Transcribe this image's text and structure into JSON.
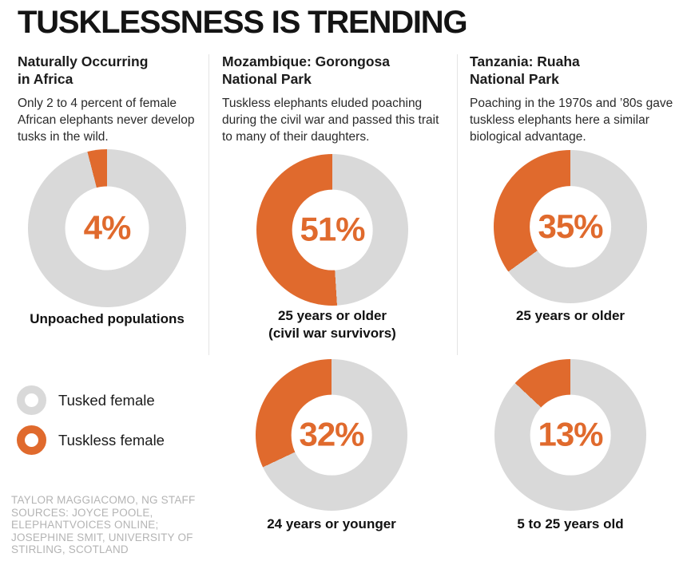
{
  "title": "TUSKLESSNESS IS TRENDING",
  "colors": {
    "tuskless": "#e06a2d",
    "tusked": "#d9d9d9",
    "divider": "#e4e4e4",
    "credits": "#b4b4b4"
  },
  "columns": [
    {
      "heading": "Naturally Occurring\nin Africa",
      "body": "Only 2 to 4 percent of female African elephants never develop tusks in the wild."
    },
    {
      "heading": "Mozambique: Gorongosa\nNational Park",
      "body": "Tuskless elephants eluded poaching during the civil war and passed this trait to many of their daughters."
    },
    {
      "heading": "Tanzania: Ruaha\nNational Park",
      "body": "Poaching in the 1970s and ’80s gave tuskless elephants here a similar biological advantage."
    }
  ],
  "charts": [
    {
      "percent_label": "4%",
      "tuskless_pct": 4,
      "caption": "Unpoached populations"
    },
    {
      "percent_label": "51%",
      "tuskless_pct": 51,
      "caption": "25 years or older\n(civil war survivors)"
    },
    {
      "percent_label": "35%",
      "tuskless_pct": 35,
      "caption": "25 years or older"
    },
    {
      "percent_label": "32%",
      "tuskless_pct": 32,
      "caption": "24 years or younger"
    },
    {
      "percent_label": "13%",
      "tuskless_pct": 13,
      "caption": "5 to 25 years old"
    }
  ],
  "legend": [
    {
      "label": "Tusked female",
      "swatch": "tusked"
    },
    {
      "label": "Tuskless female",
      "swatch": "tuskless"
    }
  ],
  "credits": "TAYLOR MAGGIACOMO, NG STAFF\nSOURCES: JOYCE POOLE,\nELEPHANTVOICES ONLINE;\nJOSEPHINE SMIT, UNIVERSITY OF\nSTIRLING, SCOTLAND",
  "chart_data": [
    {
      "type": "pie",
      "title": "Naturally Occurring in Africa — Unpoached populations",
      "labels": [
        "Tuskless female",
        "Tusked female"
      ],
      "values": [
        4,
        96
      ],
      "unit": "percent",
      "center_label": "4%"
    },
    {
      "type": "pie",
      "title": "Mozambique: Gorongosa National Park — 25 years or older (civil war survivors)",
      "labels": [
        "Tuskless female",
        "Tusked female"
      ],
      "values": [
        51,
        49
      ],
      "unit": "percent",
      "center_label": "51%"
    },
    {
      "type": "pie",
      "title": "Tanzania: Ruaha National Park — 25 years or older",
      "labels": [
        "Tuskless female",
        "Tusked female"
      ],
      "values": [
        35,
        65
      ],
      "unit": "percent",
      "center_label": "35%"
    },
    {
      "type": "pie",
      "title": "Mozambique: Gorongosa National Park — 24 years or younger",
      "labels": [
        "Tuskless female",
        "Tusked female"
      ],
      "values": [
        32,
        68
      ],
      "unit": "percent",
      "center_label": "32%"
    },
    {
      "type": "pie",
      "title": "Tanzania: Ruaha National Park — 5 to 25 years old",
      "labels": [
        "Tuskless female",
        "Tusked female"
      ],
      "values": [
        13,
        87
      ],
      "unit": "percent",
      "center_label": "13%"
    }
  ]
}
